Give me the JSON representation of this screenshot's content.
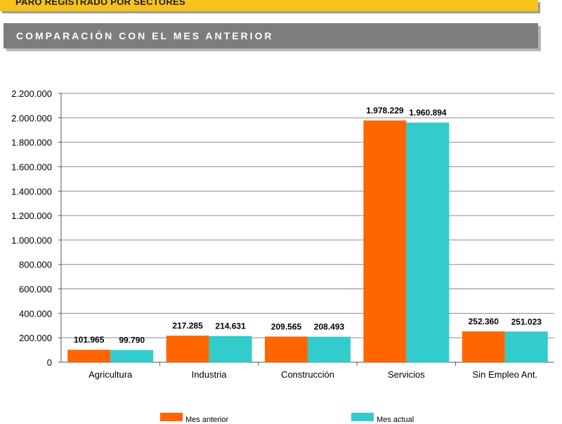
{
  "header": {
    "title": "PARO REGISTRADO POR SECTORES",
    "subtitle": "COMPARACIÓN CON EL MES ANTERIOR"
  },
  "colors": {
    "previous": "#ff6600",
    "current": "#33cccc",
    "banner_yellow": "#f6c21b",
    "banner_gray": "#7d7d7d"
  },
  "legend": {
    "position": "bottom",
    "items": [
      "Mes anterior",
      "Mes actual"
    ]
  },
  "chart_data": {
    "type": "bar",
    "categories": [
      "Agricultura",
      "Industria",
      "Construcción",
      "Servicios",
      "Sin Empleo Ant."
    ],
    "series": [
      {
        "name": "Mes anterior",
        "values": [
          101965,
          217285,
          209565,
          1978229,
          252360
        ],
        "labels": [
          "101.965",
          "217.285",
          "209.565",
          "1.978.229",
          "252.360"
        ]
      },
      {
        "name": "Mes actual",
        "values": [
          99790,
          214631,
          208493,
          1960894,
          251023
        ],
        "labels": [
          "99.790",
          "214.631",
          "208.493",
          "1.960.894",
          "251.023"
        ]
      }
    ],
    "ylim": [
      0,
      2200000
    ],
    "yticks": [
      0,
      200000,
      400000,
      600000,
      800000,
      1000000,
      1200000,
      1400000,
      1600000,
      1800000,
      2000000,
      2200000
    ],
    "ytick_labels": [
      "0",
      "200.000",
      "400.000",
      "600.000",
      "800.000",
      "1.000.000",
      "1.200.000",
      "1.400.000",
      "1.600.000",
      "1.800.000",
      "2.000.000",
      "2.200.000"
    ],
    "grid": true,
    "xlabel": "",
    "ylabel": ""
  }
}
